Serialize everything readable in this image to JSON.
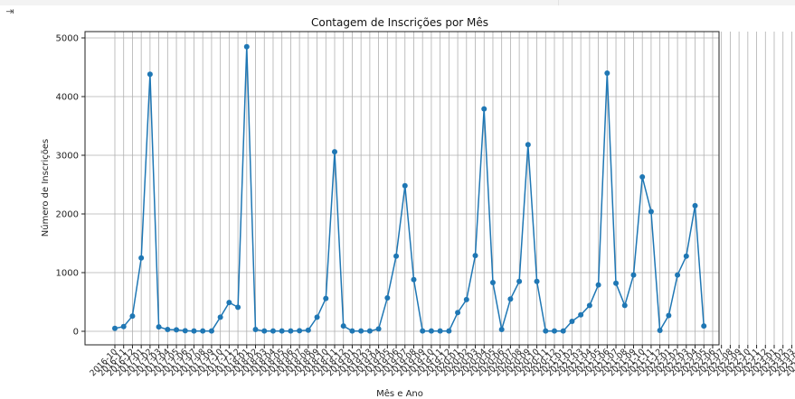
{
  "output_icon": "output-toggle-icon",
  "chart_data": {
    "type": "line",
    "title": "Contagem de Inscrições por Mês",
    "xlabel": "Mês e Ano",
    "ylabel": "Número de Inscrições",
    "ylim": [
      -200,
      5100
    ],
    "yticks": [
      0,
      1000,
      2000,
      3000,
      4000,
      5000
    ],
    "grid": true,
    "marker": "circle",
    "color": "#1f77b4",
    "categories": [
      "2016-10",
      "2016-11",
      "2016-12",
      "2017-01",
      "2017-02",
      "2017-03",
      "2017-04",
      "2017-05",
      "2017-06",
      "2017-07",
      "2017-08",
      "2017-09",
      "2017-10",
      "2017-11",
      "2017-12",
      "2018-01",
      "2018-02",
      "2018-03",
      "2018-04",
      "2018-05",
      "2018-06",
      "2018-07",
      "2018-08",
      "2018-09",
      "2018-10",
      "2018-11",
      "2018-12",
      "2019-01",
      "2019-02",
      "2019-03",
      "2019-04",
      "2019-05",
      "2019-06",
      "2019-07",
      "2019-08",
      "2019-09",
      "2019-10",
      "2019-11",
      "2019-12",
      "2020-01",
      "2020-02",
      "2020-03",
      "2020-04",
      "2020-05",
      "2020-06",
      "2020-07",
      "2020-08",
      "2020-09",
      "2020-10",
      "2020-11",
      "2020-12",
      "2021-01",
      "2021-02",
      "2021-03",
      "2021-04",
      "2021-05",
      "2021-06",
      "2021-07",
      "2021-08",
      "2021-09",
      "2021-10",
      "2021-11",
      "2021-12",
      "2022-01",
      "2022-02",
      "2022-03",
      "2022-04",
      "2022-05",
      "2022-06",
      "2022-07",
      "2022-08",
      "2022-09",
      "2022-10",
      "2022-11",
      "2022-12",
      "2023-01",
      "2023-02",
      "2023-03",
      "2023-04",
      "2023-05",
      "2023-06",
      "2023-07",
      "2023-08",
      "2023-09",
      "2023-10",
      "2023-11",
      "2023-12",
      "2024-01",
      "2024-02",
      "2024-03",
      "2024-04",
      "2024-05",
      "2024-06",
      "2024-07",
      "2024-08",
      "2024-09",
      "2024-10",
      "2024-11",
      "2024-12",
      "2025-01",
      "2025-02",
      "2025-03"
    ],
    "points": [
      {
        "x": "2016-10",
        "y": 50
      },
      {
        "x": "2016-11",
        "y": 80
      },
      {
        "x": "2016-12",
        "y": 260
      },
      {
        "x": "2017-01",
        "y": 1250
      },
      {
        "x": "2017-02",
        "y": 4380
      },
      {
        "x": "2017-03",
        "y": 75
      },
      {
        "x": "2017-04",
        "y": 30
      },
      {
        "x": "2017-05",
        "y": 25
      },
      {
        "x": "2017-06",
        "y": 10
      },
      {
        "x": "2017-07",
        "y": 5
      },
      {
        "x": "2017-08",
        "y": 5
      },
      {
        "x": "2017-09",
        "y": 5
      },
      {
        "x": "2017-10",
        "y": 240
      },
      {
        "x": "2017-11",
        "y": 490
      },
      {
        "x": "2017-12",
        "y": 410
      },
      {
        "x": "2018-01",
        "y": 4850
      },
      {
        "x": "2018-02",
        "y": 30
      },
      {
        "x": "2018-03",
        "y": 5
      },
      {
        "x": "2018-04",
        "y": 5
      },
      {
        "x": "2018-05",
        "y": 5
      },
      {
        "x": "2018-06",
        "y": 5
      },
      {
        "x": "2018-07",
        "y": 10
      },
      {
        "x": "2018-08",
        "y": 20
      },
      {
        "x": "2018-09",
        "y": 240
      },
      {
        "x": "2018-10",
        "y": 560
      },
      {
        "x": "2018-11",
        "y": 3060
      },
      {
        "x": "2018-12",
        "y": 90
      },
      {
        "x": "2019-01",
        "y": 5
      },
      {
        "x": "2019-02",
        "y": 5
      },
      {
        "x": "2019-03",
        "y": 5
      },
      {
        "x": "2019-04",
        "y": 40
      },
      {
        "x": "2019-05",
        "y": 570
      },
      {
        "x": "2019-06",
        "y": 1280
      },
      {
        "x": "2019-07",
        "y": 2480
      },
      {
        "x": "2019-08",
        "y": 880
      },
      {
        "x": "2019-09",
        "y": 5
      },
      {
        "x": "2019-10",
        "y": 5
      },
      {
        "x": "2019-11",
        "y": 5
      },
      {
        "x": "2019-12",
        "y": 5
      },
      {
        "x": "2020-01",
        "y": 320
      },
      {
        "x": "2020-02",
        "y": 540
      },
      {
        "x": "2020-03",
        "y": 1290
      },
      {
        "x": "2020-04",
        "y": 3790
      },
      {
        "x": "2020-05",
        "y": 830
      },
      {
        "x": "2020-06",
        "y": 30
      },
      {
        "x": "2020-07",
        "y": 550
      },
      {
        "x": "2020-08",
        "y": 850
      },
      {
        "x": "2020-09",
        "y": 3180
      },
      {
        "x": "2020-10",
        "y": 850
      },
      {
        "x": "2020-11",
        "y": 5
      },
      {
        "x": "2020-12",
        "y": 5
      },
      {
        "x": "2021-01",
        "y": 5
      },
      {
        "x": "2021-02",
        "y": 170
      },
      {
        "x": "2021-03",
        "y": 280
      },
      {
        "x": "2021-04",
        "y": 440
      },
      {
        "x": "2021-05",
        "y": 790
      },
      {
        "x": "2021-06",
        "y": 4400
      },
      {
        "x": "2021-07",
        "y": 820
      },
      {
        "x": "2021-08",
        "y": 440
      },
      {
        "x": "2021-09",
        "y": 960
      },
      {
        "x": "2021-10",
        "y": 2630
      },
      {
        "x": "2021-11",
        "y": 2040
      },
      {
        "x": "2021-12",
        "y": 15
      },
      {
        "x": "2022-01",
        "y": 270
      },
      {
        "x": "2022-02",
        "y": 960
      },
      {
        "x": "2022-03",
        "y": 1280
      },
      {
        "x": "2022-04",
        "y": 2140
      },
      {
        "x": "2022-05",
        "y": 90
      }
    ]
  }
}
